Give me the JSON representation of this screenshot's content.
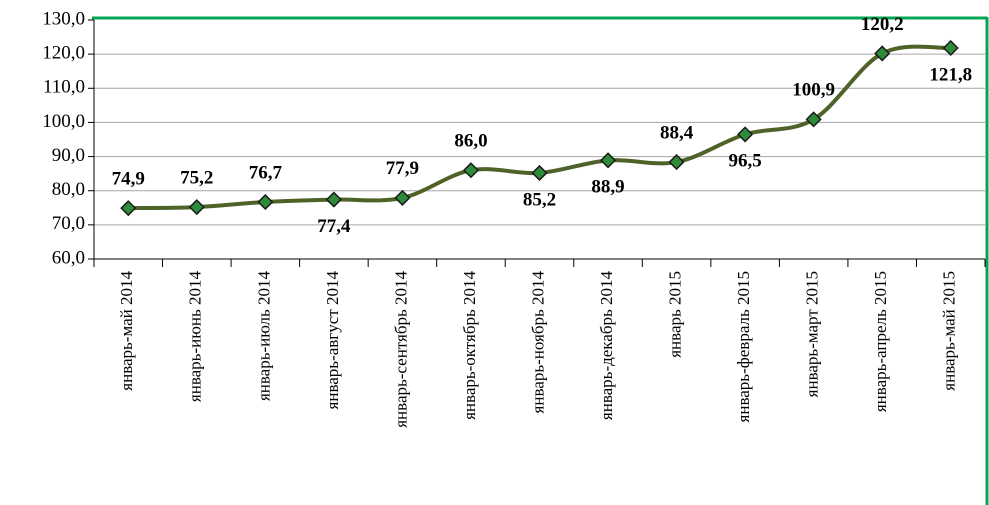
{
  "chart_data": {
    "type": "line",
    "categories": [
      "январь-май 2014",
      "январь-июнь 2014",
      "январь-июль 2014",
      "январь-август 2014",
      "январь-сентябрь 2014",
      "январь-октябрь 2014",
      "январь-ноябрь 2014",
      "январь-декабрь 2014",
      "январь 2015",
      "январь-февраль 2015",
      "январь-март 2015",
      "январь-апрель 2015",
      "январь-май 2015"
    ],
    "series": [
      {
        "color": "#4f6228",
        "marker_color": "#2e8b3a",
        "values": [
          74.9,
          75.2,
          76.7,
          77.4,
          77.9,
          86.0,
          85.2,
          88.9,
          88.4,
          96.5,
          100.9,
          120.2,
          121.8
        ],
        "value_labels": [
          "74,9",
          "75,2",
          "76,7",
          "77,4",
          "77,9",
          "86,0",
          "85,2",
          "88,9",
          "88,4",
          "96,5",
          "100,9",
          "120,2",
          "121,8"
        ]
      }
    ],
    "ylim": [
      60,
      130
    ],
    "yticks": [
      {
        "value": 60,
        "label": "60,0"
      },
      {
        "value": 70,
        "label": "70,0"
      },
      {
        "value": 80,
        "label": "80,0"
      },
      {
        "value": 90,
        "label": "90,0"
      },
      {
        "value": 100,
        "label": "100,0"
      },
      {
        "value": 110,
        "label": "110,0"
      },
      {
        "value": 120,
        "label": "120,0"
      },
      {
        "value": 130,
        "label": "130,0"
      }
    ],
    "grid": true,
    "frame_color": "#00a651"
  }
}
